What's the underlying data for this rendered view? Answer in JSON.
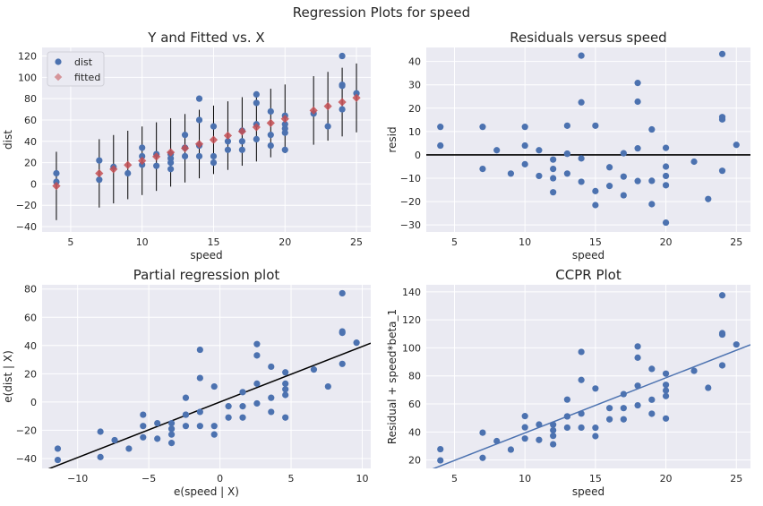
{
  "figure": {
    "title": "Regression Plots for speed"
  },
  "colors": {
    "background": "#eaeaf2",
    "grid": "#ffffff",
    "points": "#4c72b0",
    "fitted": "#c44e52",
    "fitted_light": "#dd8452",
    "line": "#000000",
    "ccpr_line": "#4c72b0"
  },
  "chart_data": [
    {
      "id": "fitted",
      "type": "scatter",
      "title": "Y and Fitted vs. X",
      "xlabel": "speed",
      "ylabel": "dist",
      "xlim": [
        3,
        26
      ],
      "ylim": [
        -45,
        128
      ],
      "xticks": [
        5,
        10,
        15,
        20,
        25
      ],
      "yticks": [
        -40,
        -20,
        0,
        20,
        40,
        60,
        80,
        100,
        120
      ],
      "legend": {
        "position": "top-left",
        "entries": [
          "dist",
          "fitted"
        ]
      },
      "series": [
        {
          "name": "dist",
          "marker": "circle",
          "points": [
            [
              4,
              2
            ],
            [
              4,
              10
            ],
            [
              7,
              4
            ],
            [
              7,
              22
            ],
            [
              8,
              16
            ],
            [
              9,
              10
            ],
            [
              10,
              18
            ],
            [
              10,
              26
            ],
            [
              10,
              34
            ],
            [
              11,
              17
            ],
            [
              11,
              28
            ],
            [
              12,
              14
            ],
            [
              12,
              20
            ],
            [
              12,
              24
            ],
            [
              12,
              28
            ],
            [
              13,
              26
            ],
            [
              13,
              34
            ],
            [
              13,
              34
            ],
            [
              13,
              46
            ],
            [
              14,
              26
            ],
            [
              14,
              36
            ],
            [
              14,
              60
            ],
            [
              14,
              80
            ],
            [
              15,
              20
            ],
            [
              15,
              26
            ],
            [
              15,
              54
            ],
            [
              16,
              32
            ],
            [
              16,
              40
            ],
            [
              17,
              32
            ],
            [
              17,
              40
            ],
            [
              17,
              50
            ],
            [
              18,
              42
            ],
            [
              18,
              56
            ],
            [
              18,
              76
            ],
            [
              18,
              84
            ],
            [
              19,
              36
            ],
            [
              19,
              46
            ],
            [
              19,
              68
            ],
            [
              20,
              32
            ],
            [
              20,
              48
            ],
            [
              20,
              52
            ],
            [
              20,
              56
            ],
            [
              20,
              64
            ],
            [
              22,
              66
            ],
            [
              23,
              54
            ],
            [
              24,
              70
            ],
            [
              24,
              92
            ],
            [
              24,
              93
            ],
            [
              24,
              120
            ],
            [
              25,
              85
            ]
          ]
        },
        {
          "name": "fitted",
          "marker": "diamond",
          "points": [
            [
              4,
              -1.85
            ],
            [
              7,
              9.95
            ],
            [
              8,
              13.88
            ],
            [
              9,
              17.81
            ],
            [
              10,
              21.74
            ],
            [
              11,
              25.68
            ],
            [
              12,
              29.61
            ],
            [
              13,
              33.54
            ],
            [
              14,
              37.47
            ],
            [
              15,
              41.41
            ],
            [
              16,
              45.34
            ],
            [
              17,
              49.27
            ],
            [
              18,
              53.21
            ],
            [
              19,
              57.14
            ],
            [
              20,
              61.07
            ],
            [
              22,
              68.94
            ],
            [
              23,
              72.87
            ],
            [
              24,
              76.8
            ],
            [
              25,
              80.73
            ]
          ]
        }
      ],
      "prediction_intervals": [
        [
          4,
          -33.9,
          30.2
        ],
        [
          7,
          -22.1,
          42.0
        ],
        [
          8,
          -18.2,
          45.9
        ],
        [
          9,
          -14.3,
          49.9
        ],
        [
          10,
          -10.4,
          53.9
        ],
        [
          11,
          -6.5,
          57.8
        ],
        [
          12,
          -2.5,
          61.7
        ],
        [
          13,
          1.4,
          65.6
        ],
        [
          14,
          5.3,
          69.6
        ],
        [
          15,
          9.3,
          73.5
        ],
        [
          16,
          13.2,
          77.5
        ],
        [
          17,
          17.1,
          81.4
        ],
        [
          18,
          21.1,
          85.3
        ],
        [
          19,
          25.0,
          89.3
        ],
        [
          20,
          28.9,
          93.3
        ],
        [
          22,
          36.8,
          101.1
        ],
        [
          23,
          40.6,
          105.1
        ],
        [
          24,
          44.6,
          109.0
        ],
        [
          25,
          48.4,
          113.0
        ]
      ]
    },
    {
      "id": "resid",
      "type": "scatter",
      "title": "Residuals versus speed",
      "xlabel": "speed",
      "ylabel": "resid",
      "xlim": [
        3,
        26
      ],
      "ylim": [
        -33,
        46
      ],
      "xticks": [
        5,
        10,
        15,
        20,
        25
      ],
      "yticks": [
        -30,
        -20,
        -10,
        0,
        10,
        20,
        30,
        40
      ],
      "hline": 0,
      "points": [
        [
          4,
          4
        ],
        [
          4,
          12
        ],
        [
          7,
          -6
        ],
        [
          7,
          12
        ],
        [
          8,
          2
        ],
        [
          9,
          -8
        ],
        [
          10,
          -4
        ],
        [
          10,
          4
        ],
        [
          10,
          12
        ],
        [
          11,
          -9
        ],
        [
          11,
          2
        ],
        [
          12,
          -16
        ],
        [
          12,
          -10
        ],
        [
          12,
          -6
        ],
        [
          12,
          -2
        ],
        [
          13,
          -8
        ],
        [
          13,
          0.5
        ],
        [
          13,
          0.5
        ],
        [
          13,
          12.5
        ],
        [
          14,
          -11.5
        ],
        [
          14,
          -1.5
        ],
        [
          14,
          22.5
        ],
        [
          14,
          42.5
        ],
        [
          15,
          -21.5
        ],
        [
          15,
          -15.5
        ],
        [
          15,
          12.5
        ],
        [
          16,
          -13.3
        ],
        [
          16,
          -5.3
        ],
        [
          17,
          -17.3
        ],
        [
          17,
          -9.3
        ],
        [
          17,
          0.7
        ],
        [
          18,
          -11.2
        ],
        [
          18,
          2.8
        ],
        [
          18,
          22.8
        ],
        [
          18,
          30.8
        ],
        [
          19,
          -21.1
        ],
        [
          19,
          -11.1
        ],
        [
          19,
          10.9
        ],
        [
          20,
          -29
        ],
        [
          20,
          -13
        ],
        [
          20,
          -9
        ],
        [
          20,
          -5
        ],
        [
          20,
          3
        ],
        [
          22,
          -2.9
        ],
        [
          23,
          -18.9
        ],
        [
          24,
          -6.8
        ],
        [
          24,
          15.2
        ],
        [
          24,
          16.2
        ],
        [
          24,
          43.2
        ],
        [
          25,
          4.3
        ]
      ]
    },
    {
      "id": "partial",
      "type": "scatter",
      "title": "Partial regression plot",
      "xlabel": "e(speed | X)",
      "ylabel": "e(dist | X)",
      "xlim": [
        -12.5,
        10.6
      ],
      "ylim": [
        -47,
        83
      ],
      "xticks": [
        -10,
        -5,
        0,
        5,
        10
      ],
      "yticks": [
        -40,
        -20,
        0,
        20,
        40,
        60,
        80
      ],
      "fit_line": {
        "slope": 3.932,
        "intercept": 0
      },
      "points": [
        [
          -11.4,
          -41
        ],
        [
          -11.4,
          -33
        ],
        [
          -8.4,
          -39
        ],
        [
          -8.4,
          -21
        ],
        [
          -7.4,
          -27
        ],
        [
          -6.4,
          -33
        ],
        [
          -5.4,
          -25
        ],
        [
          -5.4,
          -17
        ],
        [
          -5.4,
          -9
        ],
        [
          -4.4,
          -26
        ],
        [
          -4.4,
          -15
        ],
        [
          -3.4,
          -29
        ],
        [
          -3.4,
          -23
        ],
        [
          -3.4,
          -19
        ],
        [
          -3.4,
          -15
        ],
        [
          -2.4,
          -17
        ],
        [
          -2.4,
          -9
        ],
        [
          -2.4,
          -9
        ],
        [
          -2.4,
          3
        ],
        [
          -1.4,
          -17
        ],
        [
          -1.4,
          -7
        ],
        [
          -1.4,
          17
        ],
        [
          -1.4,
          37
        ],
        [
          -0.4,
          -23
        ],
        [
          -0.4,
          -17
        ],
        [
          -0.4,
          11
        ],
        [
          0.6,
          -11
        ],
        [
          0.6,
          -3
        ],
        [
          1.6,
          -11
        ],
        [
          1.6,
          -3
        ],
        [
          1.6,
          7
        ],
        [
          2.6,
          -1
        ],
        [
          2.6,
          13
        ],
        [
          2.6,
          33
        ],
        [
          2.6,
          41
        ],
        [
          3.6,
          -7
        ],
        [
          3.6,
          3
        ],
        [
          3.6,
          25
        ],
        [
          4.6,
          -11
        ],
        [
          4.6,
          5
        ],
        [
          4.6,
          9
        ],
        [
          4.6,
          13
        ],
        [
          4.6,
          21
        ],
        [
          6.6,
          23
        ],
        [
          7.6,
          11
        ],
        [
          8.6,
          27
        ],
        [
          8.6,
          49
        ],
        [
          8.6,
          50
        ],
        [
          8.6,
          77
        ],
        [
          9.6,
          42
        ]
      ]
    },
    {
      "id": "ccpr",
      "type": "scatter",
      "title": "CCPR Plot",
      "xlabel": "speed",
      "ylabel": "Residual + speed*beta_1",
      "xlim": [
        3,
        26
      ],
      "ylim": [
        14,
        145
      ],
      "xticks": [
        5,
        10,
        15,
        20,
        25
      ],
      "yticks": [
        20,
        40,
        60,
        80,
        100,
        120,
        140
      ],
      "fit_line": {
        "slope": 3.932,
        "intercept": 0
      },
      "points": [
        [
          4,
          19.7
        ],
        [
          4,
          27.7
        ],
        [
          7,
          21.5
        ],
        [
          7,
          39.5
        ],
        [
          8,
          33.5
        ],
        [
          9,
          27.4
        ],
        [
          10,
          35.3
        ],
        [
          10,
          43.3
        ],
        [
          10,
          51.3
        ],
        [
          11,
          34.3
        ],
        [
          11,
          45.3
        ],
        [
          12,
          31.2
        ],
        [
          12,
          37.2
        ],
        [
          12,
          41.2
        ],
        [
          12,
          45.2
        ],
        [
          13,
          43.1
        ],
        [
          13,
          51.1
        ],
        [
          13,
          51.1
        ],
        [
          13,
          63.1
        ],
        [
          14,
          43.1
        ],
        [
          14,
          53.1
        ],
        [
          14,
          77.1
        ],
        [
          14,
          97.1
        ],
        [
          15,
          37
        ],
        [
          15,
          43
        ],
        [
          15,
          71
        ],
        [
          16,
          49
        ],
        [
          16,
          57
        ],
        [
          17,
          49
        ],
        [
          17,
          57
        ],
        [
          17,
          67
        ],
        [
          18,
          59
        ],
        [
          18,
          73
        ],
        [
          18,
          93
        ],
        [
          18,
          101
        ],
        [
          19,
          53
        ],
        [
          19,
          63
        ],
        [
          19,
          85
        ],
        [
          20,
          49.6
        ],
        [
          20,
          65.6
        ],
        [
          20,
          69.6
        ],
        [
          20,
          73.6
        ],
        [
          20,
          81.6
        ],
        [
          22,
          83.6
        ],
        [
          23,
          71.5
        ],
        [
          24,
          87.5
        ],
        [
          24,
          109.5
        ],
        [
          24,
          110.5
        ],
        [
          24,
          137.5
        ],
        [
          25,
          102.4
        ]
      ]
    }
  ]
}
